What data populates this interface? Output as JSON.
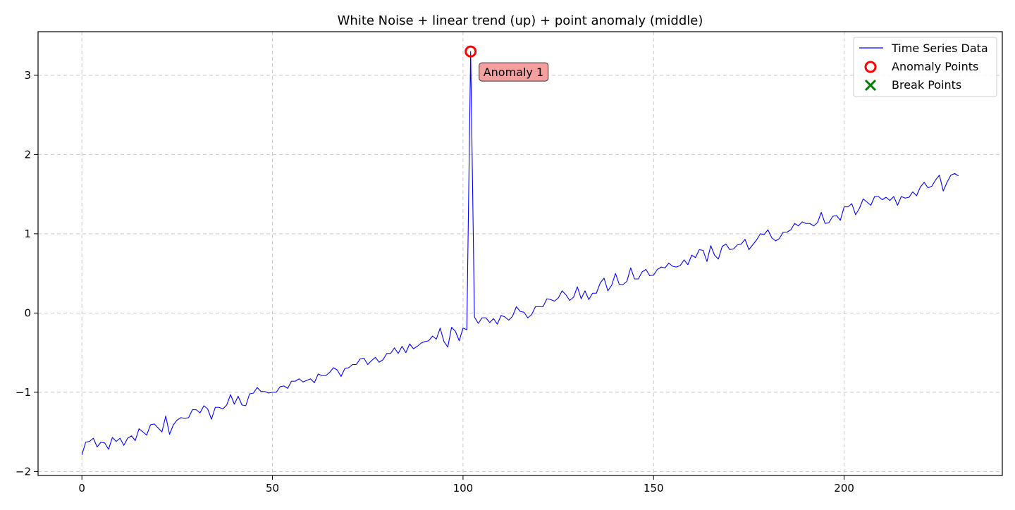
{
  "chart_data": {
    "type": "line",
    "title": "White Noise + linear trend (up) + point anomaly (middle)",
    "xlabel": "",
    "ylabel": "",
    "xlim": [
      -11.5,
      241.5
    ],
    "ylim": [
      -2.05,
      3.55
    ],
    "xticks": [
      0,
      50,
      100,
      150,
      200
    ],
    "yticks": [
      -2,
      -1,
      0,
      1,
      2,
      3
    ],
    "ytick_labels": [
      "−2",
      "−1",
      "0",
      "1",
      "2",
      "3"
    ],
    "grid": true,
    "legend_position": "top-right",
    "series": [
      {
        "name": "Time Series Data",
        "color": "#0000ff",
        "x_start": 0,
        "values": [
          -1.79,
          -1.63,
          -1.62,
          -1.58,
          -1.69,
          -1.63,
          -1.64,
          -1.72,
          -1.57,
          -1.62,
          -1.58,
          -1.67,
          -1.58,
          -1.55,
          -1.61,
          -1.46,
          -1.5,
          -1.54,
          -1.41,
          -1.4,
          -1.45,
          -1.5,
          -1.3,
          -1.53,
          -1.41,
          -1.35,
          -1.32,
          -1.33,
          -1.32,
          -1.22,
          -1.22,
          -1.26,
          -1.17,
          -1.21,
          -1.34,
          -1.19,
          -1.19,
          -1.21,
          -1.16,
          -1.03,
          -1.15,
          -1.05,
          -1.16,
          -1.17,
          -1.02,
          -1.01,
          -0.94,
          -0.99,
          -0.99,
          -1.01,
          -1.0,
          -1.0,
          -0.93,
          -0.92,
          -0.95,
          -0.86,
          -0.86,
          -0.83,
          -0.87,
          -0.85,
          -0.83,
          -0.88,
          -0.77,
          -0.79,
          -0.79,
          -0.75,
          -0.69,
          -0.72,
          -0.8,
          -0.7,
          -0.69,
          -0.65,
          -0.65,
          -0.58,
          -0.57,
          -0.65,
          -0.6,
          -0.56,
          -0.62,
          -0.59,
          -0.51,
          -0.51,
          -0.44,
          -0.51,
          -0.42,
          -0.5,
          -0.39,
          -0.45,
          -0.42,
          -0.38,
          -0.36,
          -0.35,
          -0.29,
          -0.33,
          -0.19,
          -0.36,
          -0.43,
          -0.18,
          -0.23,
          -0.35,
          -0.19,
          -0.21,
          3.3,
          -0.05,
          -0.13,
          -0.06,
          -0.06,
          -0.12,
          -0.07,
          -0.14,
          -0.03,
          -0.05,
          -0.09,
          -0.04,
          0.08,
          0.02,
          0.01,
          -0.06,
          -0.02,
          0.08,
          0.08,
          0.08,
          0.18,
          0.17,
          0.15,
          0.19,
          0.28,
          0.23,
          0.16,
          0.2,
          0.33,
          0.18,
          0.28,
          0.17,
          0.25,
          0.25,
          0.38,
          0.44,
          0.28,
          0.35,
          0.5,
          0.36,
          0.36,
          0.4,
          0.57,
          0.43,
          0.43,
          0.52,
          0.55,
          0.47,
          0.48,
          0.55,
          0.58,
          0.57,
          0.63,
          0.59,
          0.58,
          0.6,
          0.67,
          0.61,
          0.73,
          0.7,
          0.8,
          0.79,
          0.65,
          0.85,
          0.73,
          0.68,
          0.84,
          0.87,
          0.8,
          0.81,
          0.86,
          0.87,
          0.93,
          0.8,
          0.86,
          0.92,
          1.0,
          0.99,
          1.05,
          0.95,
          0.91,
          0.94,
          1.02,
          1.02,
          1.05,
          1.13,
          1.1,
          1.15,
          1.13,
          1.13,
          1.1,
          1.14,
          1.27,
          1.13,
          1.14,
          1.22,
          1.23,
          1.17,
          1.34,
          1.34,
          1.38,
          1.24,
          1.32,
          1.44,
          1.4,
          1.36,
          1.47,
          1.47,
          1.43,
          1.46,
          1.42,
          1.47,
          1.36,
          1.47,
          1.45,
          1.46,
          1.53,
          1.48,
          1.59,
          1.65,
          1.58,
          1.6,
          1.68,
          1.74,
          1.54,
          1.65,
          1.74,
          1.76,
          1.73
        ]
      }
    ],
    "anomaly_points": [
      {
        "name": "Anomaly Points",
        "x": 102,
        "y": 3.3,
        "label": "Anomaly 1",
        "color": "#ff0000"
      }
    ],
    "break_points": {
      "name": "Break Points",
      "color": "#008000",
      "points": []
    }
  }
}
